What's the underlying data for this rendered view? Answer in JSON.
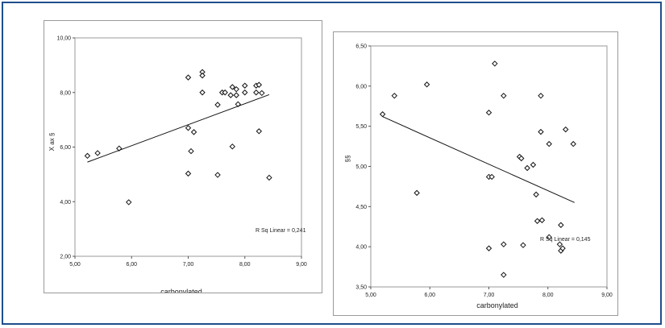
{
  "chart_data": [
    {
      "type": "scatter",
      "xlabel": "carbonylated",
      "ylabel": "X ax §",
      "xlim": [
        5.0,
        9.0
      ],
      "ylim": [
        2.0,
        10.0
      ],
      "xticks": [
        "5,00",
        "6,00",
        "7,00",
        "8,00",
        "9,00"
      ],
      "yticks": [
        "2,00",
        "4,00",
        "6,00",
        "8,00",
        "10,00"
      ],
      "annotation": "R Sq Linear = 0,241",
      "fit_line": {
        "x": [
          5.22,
          8.43
        ],
        "y": [
          5.45,
          7.92
        ]
      },
      "series": [
        {
          "points": [
            [
              5.22,
              5.68
            ],
            [
              5.4,
              5.78
            ],
            [
              5.78,
              5.95
            ],
            [
              5.95,
              3.98
            ],
            [
              7.0,
              8.55
            ],
            [
              7.0,
              6.7
            ],
            [
              7.0,
              5.03
            ],
            [
              7.05,
              5.85
            ],
            [
              7.1,
              6.55
            ],
            [
              7.25,
              8.75
            ],
            [
              7.25,
              8.62
            ],
            [
              7.25,
              8.0
            ],
            [
              7.52,
              7.55
            ],
            [
              7.52,
              4.98
            ],
            [
              7.6,
              8.0
            ],
            [
              7.65,
              8.0
            ],
            [
              7.75,
              7.9
            ],
            [
              7.78,
              8.2
            ],
            [
              7.78,
              6.02
            ],
            [
              7.85,
              8.12
            ],
            [
              7.85,
              7.9
            ],
            [
              7.88,
              7.57
            ],
            [
              8.0,
              8.25
            ],
            [
              8.0,
              8.0
            ],
            [
              8.2,
              8.0
            ],
            [
              8.2,
              8.25
            ],
            [
              8.25,
              8.28
            ],
            [
              8.25,
              6.58
            ],
            [
              8.3,
              7.98
            ],
            [
              8.43,
              4.88
            ]
          ]
        }
      ]
    },
    {
      "type": "scatter",
      "xlabel": "carbonylated",
      "ylabel": "§§",
      "xlim": [
        5.0,
        9.0
      ],
      "ylim": [
        3.5,
        6.5
      ],
      "xticks": [
        "5,00",
        "6,00",
        "7,00",
        "8,00",
        "9,00"
      ],
      "yticks": [
        "3,50",
        "4,00",
        "4,50",
        "5,00",
        "5,50",
        "6,00",
        "6,50"
      ],
      "annotation": "R Sq Linear = 0,145",
      "fit_line": {
        "x": [
          5.2,
          8.45
        ],
        "y": [
          5.62,
          4.55
        ]
      },
      "series": [
        {
          "points": [
            [
              5.2,
              5.65
            ],
            [
              5.4,
              5.88
            ],
            [
              5.78,
              4.67
            ],
            [
              5.95,
              6.02
            ],
            [
              7.0,
              5.67
            ],
            [
              7.0,
              4.87
            ],
            [
              7.0,
              3.98
            ],
            [
              7.05,
              4.87
            ],
            [
              7.1,
              6.28
            ],
            [
              7.25,
              5.88
            ],
            [
              7.25,
              4.03
            ],
            [
              7.25,
              3.65
            ],
            [
              7.52,
              5.12
            ],
            [
              7.55,
              5.1
            ],
            [
              7.58,
              4.02
            ],
            [
              7.65,
              4.98
            ],
            [
              7.75,
              5.02
            ],
            [
              7.8,
              4.65
            ],
            [
              7.82,
              4.32
            ],
            [
              7.88,
              5.88
            ],
            [
              7.88,
              5.43
            ],
            [
              7.9,
              4.33
            ],
            [
              8.02,
              5.28
            ],
            [
              8.02,
              4.12
            ],
            [
              8.2,
              4.03
            ],
            [
              8.22,
              4.27
            ],
            [
              8.22,
              3.95
            ],
            [
              8.25,
              3.98
            ],
            [
              8.3,
              5.46
            ],
            [
              8.43,
              5.28
            ]
          ]
        }
      ]
    }
  ]
}
